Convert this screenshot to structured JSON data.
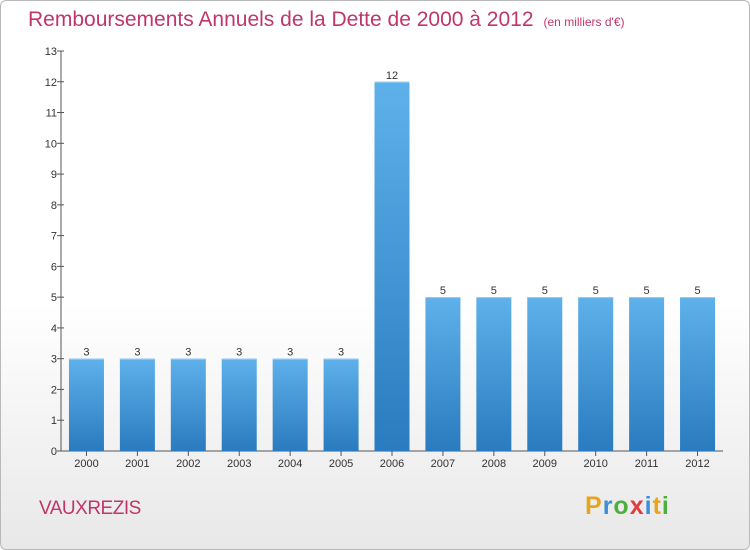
{
  "header": {
    "title": "Remboursements Annuels de la Dette de 2000 à 2012",
    "subtitle": "(en milliers d'€)"
  },
  "footer": {
    "city": "VAUXREZIS",
    "logo_letters": [
      "P",
      "r",
      "o",
      "x",
      "i",
      "t",
      "i"
    ],
    "logo_colors": [
      "#e8a41b",
      "#3b8fd6",
      "#4fae3c",
      "#e23d3d",
      "#3b8fd6",
      "#e8a41b",
      "#4fae3c"
    ]
  },
  "colors": {
    "accent": "#c0366b",
    "bar_light": "#5eb1ea",
    "bar_dark": "#2a7bbf",
    "axis": "#555555"
  },
  "chart_data": {
    "type": "bar",
    "categories": [
      "2000",
      "2001",
      "2002",
      "2003",
      "2004",
      "2005",
      "2006",
      "2007",
      "2008",
      "2009",
      "2010",
      "2011",
      "2012"
    ],
    "values": [
      3,
      3,
      3,
      3,
      3,
      3,
      12,
      5,
      5,
      5,
      5,
      5,
      5
    ],
    "data_labels": [
      "3",
      "3",
      "3",
      "3",
      "3",
      "3",
      "12",
      "5",
      "5",
      "5",
      "5",
      "5",
      "5"
    ],
    "title": "Remboursements Annuels de la Dette de 2000 à 2012",
    "ylim": [
      0,
      13
    ],
    "yticks": [
      0,
      1,
      2,
      3,
      4,
      5,
      6,
      7,
      8,
      9,
      10,
      11,
      12,
      13
    ],
    "grid": false
  }
}
